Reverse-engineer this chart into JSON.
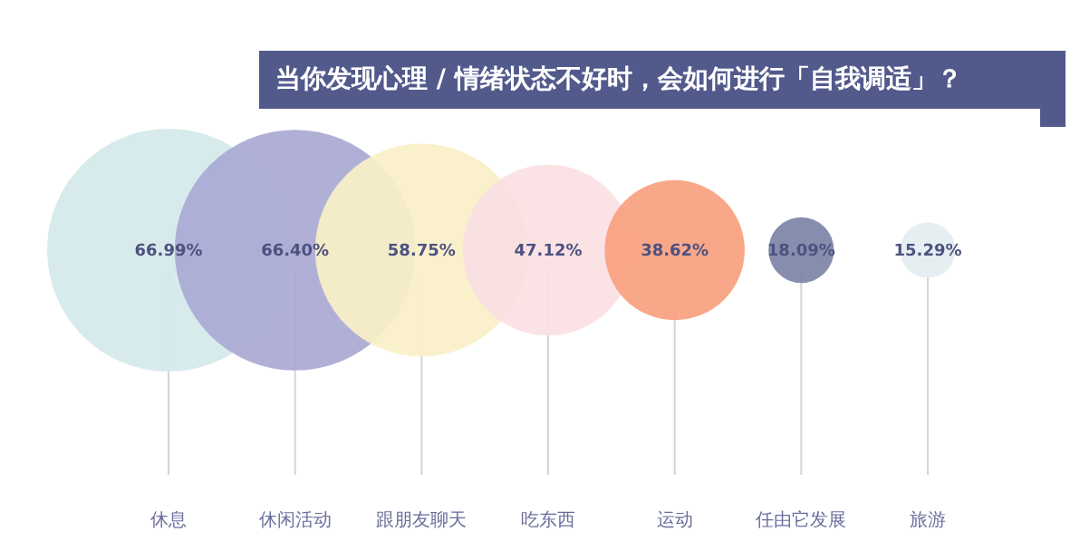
{
  "chart_data": {
    "type": "other",
    "title": "当你发现心理 / 情绪状态不好时，会如何进行「自我调适」？",
    "categories": [
      "休息",
      "休闲活动",
      "跟朋友聊天",
      "吃东西",
      "运动",
      "任由它发展",
      "旅游"
    ],
    "values": [
      66.99,
      66.4,
      58.75,
      47.12,
      38.62,
      18.09,
      15.29
    ],
    "value_labels": [
      "66.99%",
      "66.40%",
      "58.75%",
      "47.12%",
      "38.62%",
      "18.09%",
      "15.29%"
    ],
    "colors": [
      "#d5e9ea",
      "#a9a9d4",
      "#faf0c8",
      "#fadfe3",
      "#f9a07f",
      "#7c83a6",
      "#e3eef0"
    ]
  }
}
